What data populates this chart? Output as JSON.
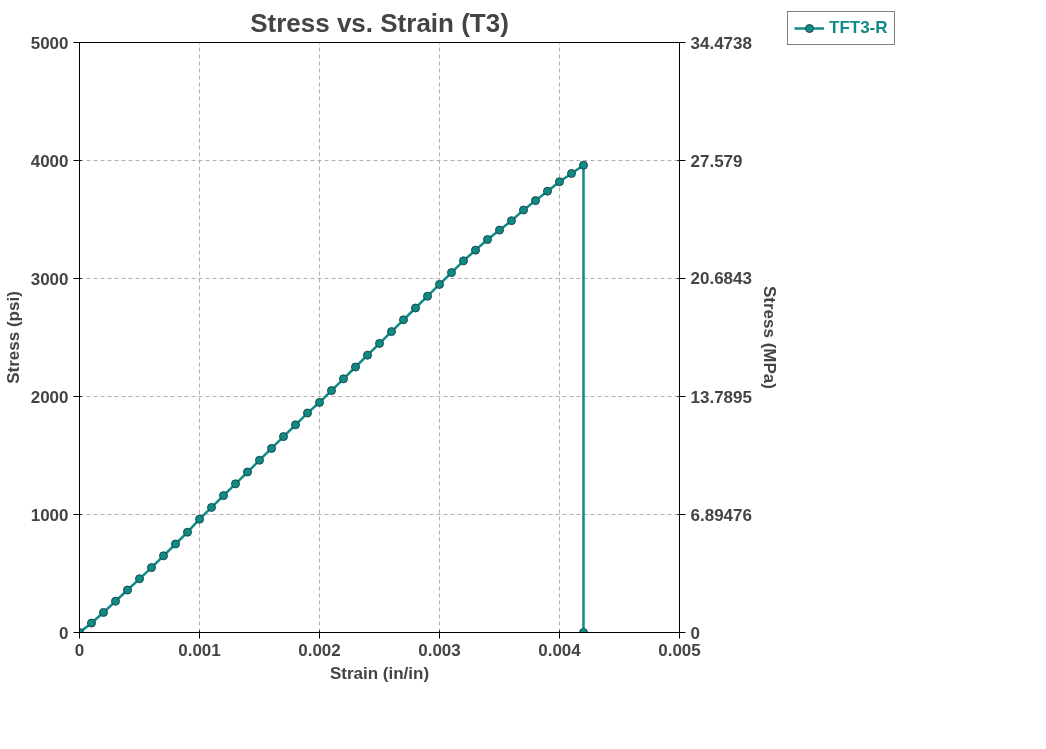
{
  "chart_data": {
    "type": "line",
    "title": "Stress vs. Strain (T3)",
    "xlabel": "Strain (in/in)",
    "ylabel": "Stress (psi)",
    "y2label": "Stress (MPa)",
    "x": [
      0,
      0.0001,
      0.0002,
      0.0003,
      0.0004,
      0.0005,
      0.0006,
      0.0007,
      0.0008,
      0.0009,
      0.001,
      0.0011,
      0.0012,
      0.0013,
      0.0014,
      0.0015,
      0.0016,
      0.0017,
      0.0018,
      0.0019,
      0.002,
      0.0021,
      0.0022,
      0.0023,
      0.0024,
      0.0025,
      0.0026,
      0.0027,
      0.0028,
      0.0029,
      0.003,
      0.0031,
      0.0032,
      0.0033,
      0.0034,
      0.0035,
      0.0036,
      0.0037,
      0.0038,
      0.0039,
      0.004,
      0.0041,
      0.0042,
      0.0042
    ],
    "series": [
      {
        "name": "TFT3-R",
        "color": "#0e8a87",
        "values": [
          0,
          80,
          170,
          265,
          360,
          455,
          550,
          650,
          750,
          850,
          960,
          1060,
          1160,
          1260,
          1360,
          1460,
          1560,
          1660,
          1760,
          1860,
          1950,
          2050,
          2150,
          2250,
          2350,
          2450,
          2550,
          2650,
          2750,
          2850,
          2950,
          3050,
          3150,
          3240,
          3330,
          3410,
          3490,
          3580,
          3660,
          3740,
          3820,
          3890,
          3960,
          0
        ]
      }
    ],
    "xlim": [
      0,
      0.005
    ],
    "xticks": [
      0,
      0.001,
      0.002,
      0.003,
      0.004,
      0.005
    ],
    "ylim": [
      0,
      5000
    ],
    "yticks": [
      0,
      1000,
      2000,
      3000,
      4000,
      5000
    ],
    "y2lim": [
      0,
      34.4738
    ],
    "y2ticks": [
      0,
      6.89476,
      13.7895,
      20.6843,
      27.579,
      34.4738
    ],
    "grid": true,
    "legend": "top right",
    "marker": "circle",
    "line_style": "solid"
  }
}
